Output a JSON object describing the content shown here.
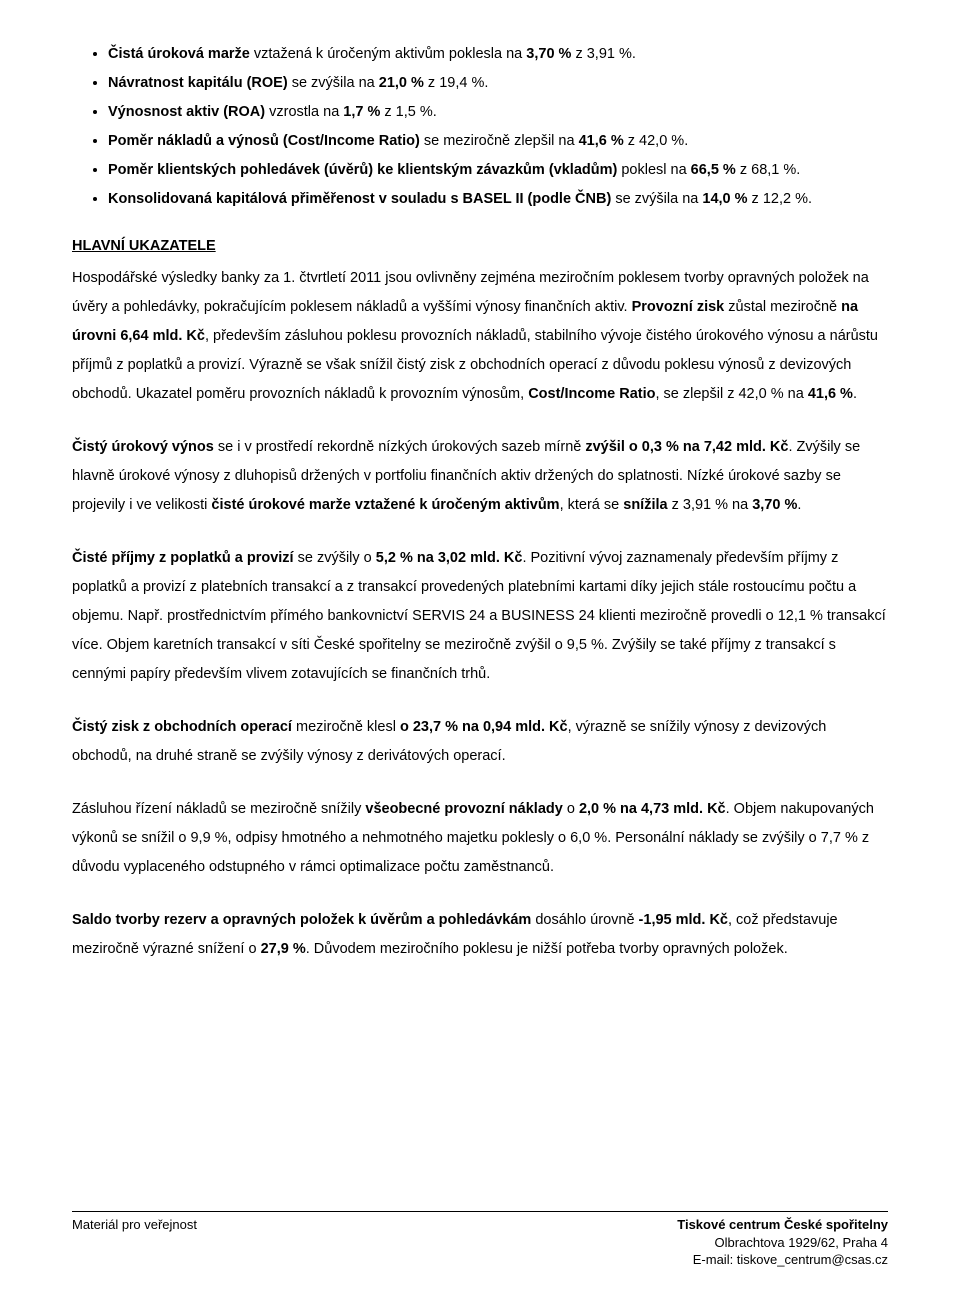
{
  "colors": {
    "text": "#000000",
    "background": "#ffffff",
    "footer_rule": "#000000"
  },
  "typography": {
    "font_family": "Arial",
    "body_fontsize_pt": 11,
    "line_height": 2.0,
    "heading_fontsize_pt": 11,
    "heading_bold": true,
    "heading_underline": true
  },
  "bullets": [
    {
      "prefix": "",
      "bold1": "Čistá úroková marže",
      "mid": " vztažená k úročeným aktivům poklesla na ",
      "bold2": "3,70 %",
      "suffix": " z 3,91 %."
    },
    {
      "prefix": "",
      "bold1": "Návratnost kapitálu (ROE)",
      "mid": " se zvýšila na ",
      "bold2": "21,0 %",
      "suffix": " z 19,4 %."
    },
    {
      "prefix": "",
      "bold1": "Výnosnost aktiv (ROA)",
      "mid": " vzrostla na ",
      "bold2": "1,7 %",
      "suffix": " z 1,5 %."
    },
    {
      "prefix": "",
      "bold1": "Poměr nákladů a výnosů (Cost/Income Ratio)",
      "mid": " se meziročně zlepšil na ",
      "bold2": "41,6 %",
      "suffix": " z 42,0 %."
    },
    {
      "prefix": "",
      "bold1": "Poměr klientských pohledávek (úvěrů) ke klientským závazkům (vkladům)",
      "mid": " poklesl na ",
      "bold2": "66,5 %",
      "suffix": " z 68,1 %."
    },
    {
      "prefix": "",
      "bold1": "Konsolidovaná kapitálová přiměřenost v souladu s BASEL II (podle ČNB)",
      "mid": " se zvýšila na ",
      "bold2": "14,0 %",
      "suffix": " z 12,2 %."
    }
  ],
  "heading": "HLAVNÍ UKAZATELE",
  "para1": {
    "t1": "Hospodářské výsledky banky za 1. čtvrtletí 2011 jsou ovlivněny zejména meziročním poklesem tvorby opravných položek na úvěry a pohledávky, pokračujícím poklesem nákladů a vyššími výnosy finančních aktiv. ",
    "b1": "Provozní zisk",
    "t2": " zůstal meziročně ",
    "b2": "na úrovni 6,64 mld. Kč",
    "t3": ", především zásluhou poklesu provozních nákladů, stabilního vývoje čistého úrokového výnosu a nárůstu příjmů z poplatků a provizí. Výrazně se však snížil čistý zisk z obchodních operací z důvodu poklesu výnosů z devizových obchodů. Ukazatel poměru provozních nákladů k provozním výnosům, ",
    "b3": "Cost/Income Ratio",
    "t4": ", se zlepšil z 42,0 % na ",
    "b4": "41,6 %",
    "t5": "."
  },
  "para2": {
    "b1": "Čistý úrokový výnos",
    "t1": " se i v prostředí rekordně nízkých úrokových sazeb mírně ",
    "b2": "zvýšil o 0,3 % na 7,42 mld. Kč",
    "t2": ". Zvýšily se hlavně úrokové výnosy z dluhopisů držených v portfoliu finančních aktiv držených do splatnosti. Nízké úrokové sazby se projevily i ve velikosti ",
    "b3": "čisté úrokové marže vztažené k úročeným aktivům",
    "t3": ", která se ",
    "b4": "snížila",
    "t4": " z 3,91 % na ",
    "b5": "3,70 %",
    "t5": "."
  },
  "para3": {
    "b1": "Čisté příjmy z poplatků a provizí",
    "t1": " se zvýšily o ",
    "b2": "5,2 % na 3,02 mld. Kč",
    "t2": ". Pozitivní vývoj zaznamenaly především příjmy z poplatků a provizí z platebních transakcí a z transakcí provedených platebními kartami díky jejich stále rostoucímu počtu a objemu. Např. prostřednictvím přímého bankovnictví SERVIS 24 a BUSINESS 24 klienti meziročně provedli o 12,1 % transakcí více. Objem karetních transakcí v síti České spořitelny se meziročně zvýšil o 9,5 %. Zvýšily se také příjmy z transakcí s cennými papíry především vlivem zotavujících se finančních trhů."
  },
  "para4": {
    "b1": "Čistý zisk z obchodních operací",
    "t1": " meziročně klesl ",
    "b2": "o 23,7 % na 0,94 mld. Kč",
    "t2": ", výrazně se snížily výnosy z devizových obchodů, na druhé straně se zvýšily výnosy z derivátových operací."
  },
  "para5": {
    "t0": "Zásluhou řízení nákladů se meziročně snížily ",
    "b1": "všeobecné provozní náklady",
    "t1": " o ",
    "b2": "2,0 % na 4,73 mld. Kč",
    "t2": ". Objem nakupovaných výkonů se snížil o 9,9 %, odpisy hmotného a nehmotného majetku poklesly o 6,0 %. Personální náklady se zvýšily o 7,7 % z důvodu vyplaceného odstupného v rámci optimalizace počtu zaměstnanců."
  },
  "para6": {
    "b1": "Saldo tvorby rezerv a opravných položek k úvěrům a pohledávkám",
    "t1": " dosáhlo úrovně ",
    "b2": "-1,95 mld. Kč",
    "t2": ", což představuje meziročně výrazné snížení o ",
    "b3": "27,9 %",
    "t3": ". Důvodem meziročního poklesu je nižší potřeba tvorby opravných položek."
  },
  "footer": {
    "left": "Materiál pro veřejnost",
    "right_bold": "Tiskové centrum České spořitelny",
    "right_addr": "Olbrachtova 1929/62, Praha 4",
    "right_email": "E-mail: tiskove_centrum@csas.cz"
  }
}
